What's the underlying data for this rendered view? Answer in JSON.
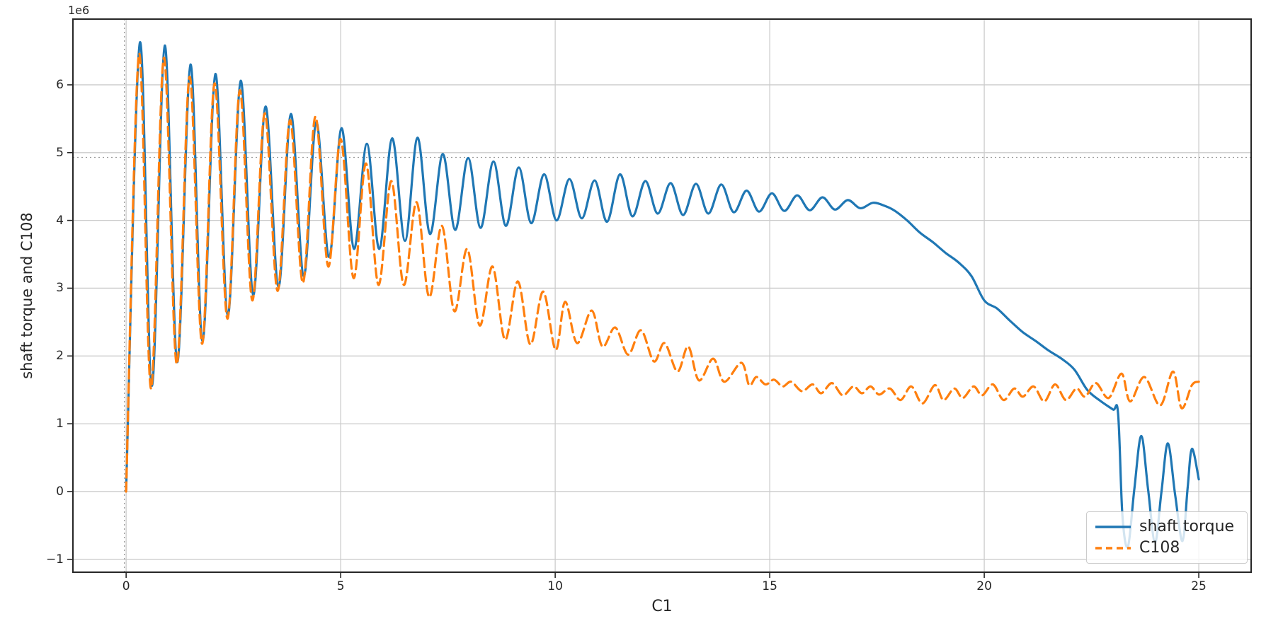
{
  "chart_data": {
    "type": "line",
    "title": "",
    "xlabel": "C1",
    "ylabel": "shaft torque and C108",
    "y_offset_label": "1e6",
    "y_unit_multiplier": 1000000,
    "xlim": [
      -1.24,
      26.22
    ],
    "ylim": [
      -1.19,
      6.97
    ],
    "x_ticks": [
      0,
      5,
      10,
      15,
      20,
      25
    ],
    "y_ticks": [
      -1,
      0,
      1,
      2,
      3,
      4,
      5,
      6
    ],
    "grid": true,
    "grid_color": "#cccccc",
    "reference_lines": {
      "vertical_x": 0,
      "horizontal_y": 4.93,
      "style": "dotted",
      "color": "#999999"
    },
    "legend": {
      "position": "lower right",
      "entries": [
        {
          "label": "shaft torque",
          "color": "#1f77b4",
          "dash": "solid"
        },
        {
          "label": "C108",
          "color": "#ff7f0e",
          "dash": "dashed"
        }
      ]
    },
    "series": [
      {
        "name": "shaft torque",
        "color": "#1f77b4",
        "style": "solid",
        "points": [
          [
            0.0,
            0.02
          ],
          [
            0.32,
            6.62
          ],
          [
            0.6,
            1.56
          ],
          [
            0.9,
            6.58
          ],
          [
            1.19,
            1.91
          ],
          [
            1.5,
            6.3
          ],
          [
            1.78,
            2.22
          ],
          [
            2.08,
            6.16
          ],
          [
            2.37,
            2.6
          ],
          [
            2.67,
            6.06
          ],
          [
            2.96,
            2.9
          ],
          [
            3.25,
            5.68
          ],
          [
            3.55,
            3.02
          ],
          [
            3.84,
            5.57
          ],
          [
            4.14,
            3.18
          ],
          [
            4.43,
            5.45
          ],
          [
            4.73,
            3.46
          ],
          [
            5.02,
            5.36
          ],
          [
            5.31,
            3.58
          ],
          [
            5.61,
            5.13
          ],
          [
            5.9,
            3.58
          ],
          [
            6.2,
            5.21
          ],
          [
            6.5,
            3.7
          ],
          [
            6.79,
            5.22
          ],
          [
            7.08,
            3.8
          ],
          [
            7.38,
            4.98
          ],
          [
            7.67,
            3.86
          ],
          [
            7.97,
            4.92
          ],
          [
            8.26,
            3.89
          ],
          [
            8.56,
            4.87
          ],
          [
            8.85,
            3.92
          ],
          [
            9.15,
            4.78
          ],
          [
            9.44,
            3.96
          ],
          [
            9.74,
            4.68
          ],
          [
            10.03,
            4.0
          ],
          [
            10.33,
            4.61
          ],
          [
            10.62,
            4.03
          ],
          [
            10.92,
            4.59
          ],
          [
            11.21,
            3.98
          ],
          [
            11.51,
            4.68
          ],
          [
            11.8,
            4.06
          ],
          [
            12.1,
            4.58
          ],
          [
            12.39,
            4.1
          ],
          [
            12.69,
            4.55
          ],
          [
            12.98,
            4.08
          ],
          [
            13.28,
            4.54
          ],
          [
            13.57,
            4.1
          ],
          [
            13.87,
            4.53
          ],
          [
            14.16,
            4.12
          ],
          [
            14.46,
            4.44
          ],
          [
            14.75,
            4.13
          ],
          [
            15.05,
            4.4
          ],
          [
            15.34,
            4.14
          ],
          [
            15.64,
            4.37
          ],
          [
            15.93,
            4.15
          ],
          [
            16.23,
            4.34
          ],
          [
            16.52,
            4.16
          ],
          [
            16.82,
            4.3
          ],
          [
            17.11,
            4.18
          ],
          [
            17.41,
            4.26
          ],
          [
            17.7,
            4.21
          ],
          [
            17.92,
            4.14
          ],
          [
            18.2,
            4.0
          ],
          [
            18.5,
            3.82
          ],
          [
            18.8,
            3.68
          ],
          [
            19.1,
            3.52
          ],
          [
            19.4,
            3.38
          ],
          [
            19.7,
            3.18
          ],
          [
            20.0,
            2.82
          ],
          [
            20.3,
            2.7
          ],
          [
            20.6,
            2.52
          ],
          [
            20.9,
            2.35
          ],
          [
            21.2,
            2.22
          ],
          [
            21.5,
            2.08
          ],
          [
            21.8,
            1.96
          ],
          [
            22.1,
            1.8
          ],
          [
            22.4,
            1.5
          ],
          [
            22.7,
            1.34
          ],
          [
            23.0,
            1.21
          ],
          [
            23.12,
            1.15
          ],
          [
            23.22,
            -0.35
          ],
          [
            23.35,
            -0.81
          ],
          [
            23.5,
            0.05
          ],
          [
            23.66,
            0.82
          ],
          [
            23.82,
            0.02
          ],
          [
            23.98,
            -0.75
          ],
          [
            24.13,
            0.0
          ],
          [
            24.28,
            0.71
          ],
          [
            24.45,
            -0.05
          ],
          [
            24.62,
            -0.73
          ],
          [
            24.74,
            0.05
          ],
          [
            24.84,
            0.63
          ],
          [
            25.0,
            0.18
          ]
        ]
      },
      {
        "name": "C108",
        "color": "#ff7f0e",
        "style": "dashed",
        "points": [
          [
            0.0,
            0.0
          ],
          [
            0.3,
            6.45
          ],
          [
            0.58,
            1.52
          ],
          [
            0.88,
            6.4
          ],
          [
            1.18,
            1.88
          ],
          [
            1.48,
            6.12
          ],
          [
            1.77,
            2.18
          ],
          [
            2.06,
            6.02
          ],
          [
            2.36,
            2.55
          ],
          [
            2.65,
            5.92
          ],
          [
            2.94,
            2.82
          ],
          [
            3.23,
            5.58
          ],
          [
            3.53,
            2.96
          ],
          [
            3.82,
            5.48
          ],
          [
            4.12,
            3.08
          ],
          [
            4.41,
            5.53
          ],
          [
            4.71,
            3.32
          ],
          [
            5.0,
            5.2
          ],
          [
            5.3,
            3.15
          ],
          [
            5.59,
            4.84
          ],
          [
            5.88,
            3.05
          ],
          [
            6.18,
            4.58
          ],
          [
            6.47,
            3.05
          ],
          [
            6.77,
            4.27
          ],
          [
            7.06,
            2.87
          ],
          [
            7.36,
            3.92
          ],
          [
            7.65,
            2.66
          ],
          [
            7.95,
            3.58
          ],
          [
            8.24,
            2.45
          ],
          [
            8.54,
            3.32
          ],
          [
            8.83,
            2.24
          ],
          [
            9.13,
            3.1
          ],
          [
            9.42,
            2.17
          ],
          [
            9.72,
            2.95
          ],
          [
            10.01,
            2.09
          ],
          [
            10.23,
            2.8
          ],
          [
            10.51,
            2.19
          ],
          [
            10.85,
            2.67
          ],
          [
            11.1,
            2.14
          ],
          [
            11.4,
            2.42
          ],
          [
            11.7,
            2.02
          ],
          [
            12.0,
            2.38
          ],
          [
            12.3,
            1.92
          ],
          [
            12.55,
            2.19
          ],
          [
            12.85,
            1.77
          ],
          [
            13.1,
            2.14
          ],
          [
            13.35,
            1.64
          ],
          [
            13.68,
            1.96
          ],
          [
            13.94,
            1.62
          ],
          [
            14.34,
            1.9
          ],
          [
            14.52,
            1.57
          ],
          [
            14.69,
            1.69
          ],
          [
            14.9,
            1.58
          ],
          [
            15.1,
            1.65
          ],
          [
            15.3,
            1.55
          ],
          [
            15.5,
            1.62
          ],
          [
            15.75,
            1.48
          ],
          [
            16.0,
            1.58
          ],
          [
            16.2,
            1.45
          ],
          [
            16.45,
            1.6
          ],
          [
            16.7,
            1.42
          ],
          [
            16.95,
            1.55
          ],
          [
            17.15,
            1.45
          ],
          [
            17.35,
            1.55
          ],
          [
            17.55,
            1.43
          ],
          [
            17.8,
            1.52
          ],
          [
            18.05,
            1.35
          ],
          [
            18.3,
            1.55
          ],
          [
            18.56,
            1.3
          ],
          [
            18.85,
            1.57
          ],
          [
            19.05,
            1.35
          ],
          [
            19.3,
            1.52
          ],
          [
            19.5,
            1.38
          ],
          [
            19.75,
            1.55
          ],
          [
            19.95,
            1.42
          ],
          [
            20.2,
            1.58
          ],
          [
            20.45,
            1.35
          ],
          [
            20.7,
            1.52
          ],
          [
            20.9,
            1.4
          ],
          [
            21.15,
            1.55
          ],
          [
            21.4,
            1.33
          ],
          [
            21.65,
            1.58
          ],
          [
            21.9,
            1.35
          ],
          [
            22.15,
            1.52
          ],
          [
            22.35,
            1.4
          ],
          [
            22.6,
            1.6
          ],
          [
            22.9,
            1.38
          ],
          [
            23.2,
            1.74
          ],
          [
            23.4,
            1.33
          ],
          [
            23.73,
            1.69
          ],
          [
            24.1,
            1.27
          ],
          [
            24.4,
            1.77
          ],
          [
            24.6,
            1.23
          ],
          [
            24.84,
            1.57
          ],
          [
            25.0,
            1.62
          ]
        ]
      }
    ]
  },
  "colors": {
    "series_blue": "#1f77b4",
    "series_orange": "#ff7f0e",
    "grid": "#cccccc",
    "spine": "#262626",
    "text": "#262626",
    "reference_dotted": "#999999",
    "background": "#ffffff"
  }
}
